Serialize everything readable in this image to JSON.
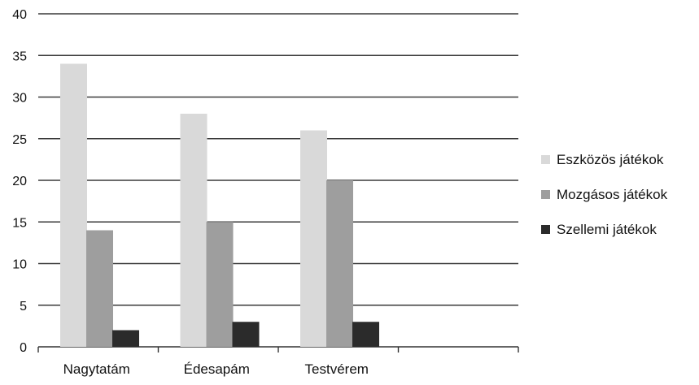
{
  "chart_data": {
    "type": "bar",
    "title": "",
    "xlabel": "",
    "ylabel": "",
    "categories": [
      "Nagytatám",
      "Édesapám",
      "Testvérem",
      ""
    ],
    "series": [
      {
        "name": "Eszközös játékok",
        "values": [
          34,
          28,
          26,
          null
        ],
        "color": "#d9d9d9"
      },
      {
        "name": "Mozgásos játékok",
        "values": [
          14,
          15,
          20,
          null
        ],
        "color": "#9e9e9e"
      },
      {
        "name": "Szellemi játékok",
        "values": [
          2,
          3,
          3,
          null
        ],
        "color": "#2b2b2b"
      }
    ],
    "ylim": [
      0,
      40
    ],
    "yticks": [
      0,
      5,
      10,
      15,
      20,
      25,
      30,
      35,
      40
    ],
    "grid": true,
    "legend_position": "right"
  }
}
